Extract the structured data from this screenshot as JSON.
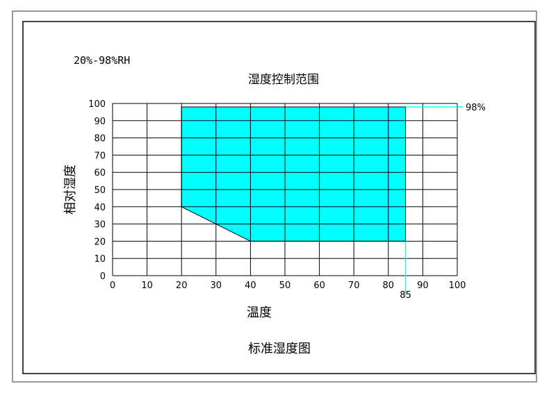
{
  "chart_data": {
    "type": "area",
    "range_label": "20%-98%RH",
    "title": "湿度控制范围",
    "xlabel": "温度",
    "ylabel": "相对湿度",
    "caption": "标准湿度图",
    "xlim": [
      0,
      100
    ],
    "ylim": [
      0,
      100
    ],
    "x_ticks": [
      0,
      10,
      20,
      30,
      40,
      50,
      60,
      70,
      80,
      90,
      100
    ],
    "y_ticks": [
      0,
      10,
      20,
      30,
      40,
      50,
      60,
      70,
      80,
      90,
      100
    ],
    "grid": true,
    "region": [
      {
        "x": 20,
        "y": 98
      },
      {
        "x": 85,
        "y": 98
      },
      {
        "x": 85,
        "y": 20
      },
      {
        "x": 40,
        "y": 20
      },
      {
        "x": 20,
        "y": 40
      }
    ],
    "annotations": [
      {
        "text": "98%",
        "axis": "y",
        "value": 98
      },
      {
        "text": "85",
        "axis": "x",
        "value": 85
      }
    ],
    "fill_color": "#00FFFF"
  }
}
